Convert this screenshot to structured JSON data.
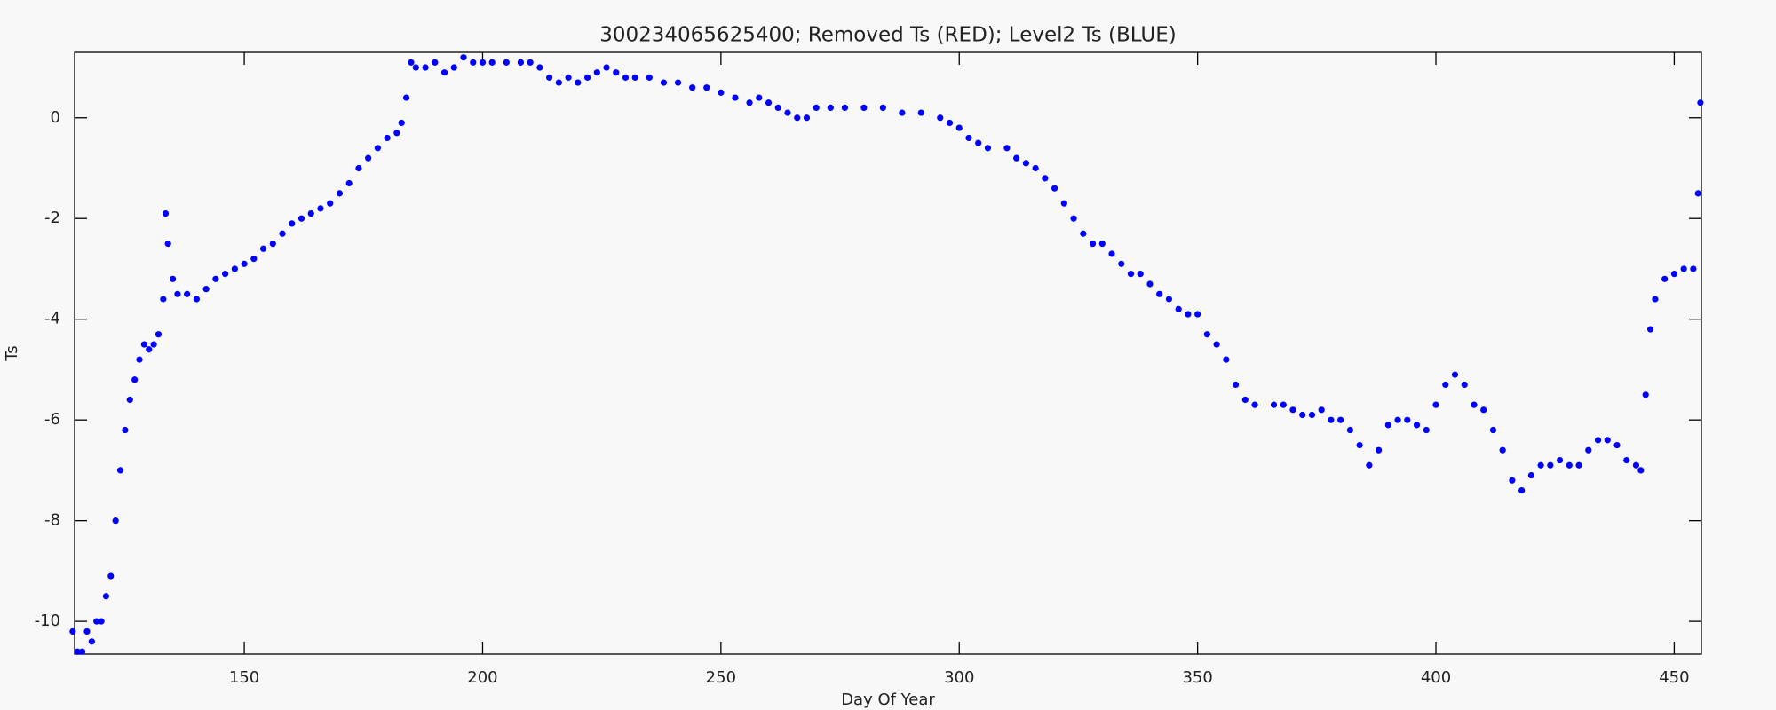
{
  "chart_data": {
    "type": "scatter",
    "title": "300234065625400; Removed Ts (RED); Level2 Ts (BLUE)",
    "x_label": "Day Of Year",
    "y_label": "Ts",
    "x": [
      114,
      115,
      116,
      117,
      118,
      119,
      120,
      121,
      122,
      123,
      124,
      125,
      126,
      127,
      128,
      129,
      130,
      131,
      132,
      133,
      133.5,
      134,
      135,
      136,
      138,
      140,
      142,
      144,
      146,
      148,
      150,
      152,
      154,
      156,
      158,
      160,
      162,
      164,
      166,
      168,
      170,
      172,
      174,
      176,
      178,
      180,
      182,
      183,
      184,
      185,
      186,
      188,
      190,
      192,
      194,
      196,
      198,
      200,
      202,
      205,
      208,
      210,
      212,
      214,
      216,
      218,
      220,
      222,
      224,
      226,
      228,
      230,
      232,
      235,
      238,
      241,
      244,
      247,
      250,
      253,
      256,
      258,
      260,
      262,
      264,
      266,
      268,
      270,
      273,
      276,
      280,
      284,
      288,
      292,
      296,
      298,
      300,
      302,
      304,
      306,
      310,
      312,
      314,
      316,
      318,
      320,
      322,
      324,
      326,
      328,
      330,
      332,
      334,
      336,
      338,
      340,
      342,
      344,
      346,
      348,
      350,
      352,
      354,
      356,
      358,
      360,
      362,
      366,
      368,
      370,
      372,
      374,
      376,
      378,
      380,
      382,
      384,
      386,
      388,
      390,
      392,
      394,
      396,
      398,
      400,
      402,
      404,
      406,
      408,
      410,
      412,
      414,
      416,
      418,
      420,
      422,
      424,
      426,
      428,
      430,
      432,
      434,
      436,
      438,
      440,
      442,
      443,
      444,
      445,
      446,
      448,
      450,
      452,
      454,
      455,
      455.5
    ],
    "values": [
      -10.2,
      -10.6,
      -10.6,
      -10.2,
      -10.4,
      -10.0,
      -10.0,
      -9.5,
      -9.1,
      -8.0,
      -7.0,
      -6.2,
      -5.6,
      -5.2,
      -4.8,
      -4.5,
      -4.6,
      -4.5,
      -4.3,
      -3.6,
      -1.9,
      -2.5,
      -3.2,
      -3.5,
      -3.5,
      -3.6,
      -3.4,
      -3.2,
      -3.1,
      -3.0,
      -2.9,
      -2.8,
      -2.6,
      -2.5,
      -2.3,
      -2.1,
      -2.0,
      -1.9,
      -1.8,
      -1.7,
      -1.5,
      -1.3,
      -1.0,
      -0.8,
      -0.6,
      -0.4,
      -0.3,
      -0.1,
      0.4,
      1.1,
      1.0,
      1.0,
      1.1,
      0.9,
      1.0,
      1.2,
      1.1,
      1.1,
      1.1,
      1.1,
      1.1,
      1.1,
      1.0,
      0.8,
      0.7,
      0.8,
      0.7,
      0.8,
      0.9,
      1.0,
      0.9,
      0.8,
      0.8,
      0.8,
      0.7,
      0.7,
      0.6,
      0.6,
      0.5,
      0.4,
      0.3,
      0.4,
      0.3,
      0.2,
      0.1,
      0.0,
      0.0,
      0.2,
      0.2,
      0.2,
      0.2,
      0.2,
      0.1,
      0.1,
      0.0,
      -0.1,
      -0.2,
      -0.4,
      -0.5,
      -0.6,
      -0.6,
      -0.8,
      -0.9,
      -1.0,
      -1.2,
      -1.4,
      -1.7,
      -2.0,
      -2.3,
      -2.5,
      -2.5,
      -2.7,
      -2.9,
      -3.1,
      -3.1,
      -3.3,
      -3.5,
      -3.6,
      -3.8,
      -3.9,
      -3.9,
      -4.3,
      -4.5,
      -4.8,
      -5.3,
      -5.6,
      -5.7,
      -5.7,
      -5.7,
      -5.8,
      -5.9,
      -5.9,
      -5.8,
      -6.0,
      -6.0,
      -6.2,
      -6.5,
      -6.9,
      -6.6,
      -6.1,
      -6.0,
      -6.0,
      -6.1,
      -6.2,
      -5.7,
      -5.3,
      -5.1,
      -5.3,
      -5.7,
      -5.8,
      -6.2,
      -6.6,
      -7.2,
      -7.4,
      -7.1,
      -6.9,
      -6.9,
      -6.8,
      -6.9,
      -6.9,
      -6.6,
      -6.4,
      -6.4,
      -6.5,
      -6.8,
      -6.9,
      -7.0,
      -5.5,
      -4.2,
      -3.6,
      -3.2,
      -3.1,
      -3.0,
      -3.0,
      -1.5,
      0.3
    ],
    "color": "#0000ff",
    "xlim": [
      114.4,
      455.7
    ],
    "xticks": [
      150,
      200,
      250,
      300,
      350,
      400,
      450
    ],
    "ylim": [
      -10.65,
      1.3
    ],
    "yticks": [
      -10,
      -8,
      -6,
      -4,
      -2,
      0
    ]
  }
}
